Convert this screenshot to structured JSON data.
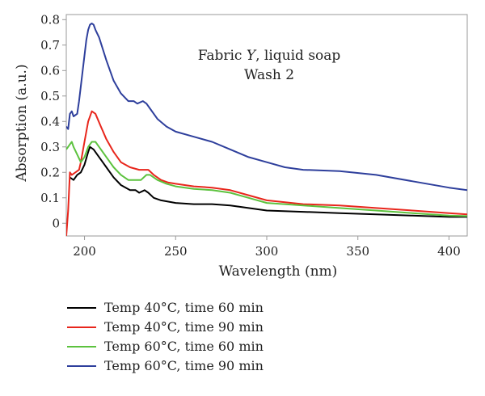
{
  "chart_data": {
    "type": "line",
    "title": "",
    "xlabel": "Wavelength (nm)",
    "ylabel": "Absorption (a.u.)",
    "xlim": [
      190,
      410
    ],
    "ylim": [
      -0.05,
      0.82
    ],
    "xticks": [
      200,
      250,
      300,
      350,
      400
    ],
    "yticks": [
      0,
      0.1,
      0.2,
      0.3,
      0.4,
      0.5,
      0.6,
      0.7,
      0.8
    ],
    "xtick_labels": [
      "200",
      "250",
      "300",
      "350",
      "400"
    ],
    "ytick_labels": [
      "0",
      "0.1",
      "0.2",
      "0.3",
      "0.4",
      "0.5",
      "0.6",
      "0.7",
      "0.8"
    ],
    "grid": false,
    "legend_position": "bottom",
    "annotation": {
      "line1_prefix": "Fabric ",
      "line1_italic": "Y",
      "line1_suffix": ", liquid soap",
      "line2": "Wash 2"
    },
    "series": [
      {
        "name": "Temp 40°C, time 60 min",
        "color": "#000000",
        "x": [
          192,
          194,
          196,
          198,
          200,
          202,
          203,
          205,
          208,
          212,
          216,
          220,
          225,
          228,
          230,
          233,
          235,
          238,
          242,
          246,
          250,
          260,
          270,
          280,
          290,
          300,
          320,
          340,
          360,
          380,
          400,
          410
        ],
        "y": [
          0.18,
          0.17,
          0.19,
          0.2,
          0.23,
          0.28,
          0.3,
          0.29,
          0.26,
          0.22,
          0.18,
          0.15,
          0.13,
          0.13,
          0.12,
          0.13,
          0.12,
          0.1,
          0.09,
          0.085,
          0.08,
          0.075,
          0.075,
          0.07,
          0.06,
          0.05,
          0.045,
          0.04,
          0.035,
          0.03,
          0.025,
          0.025
        ]
      },
      {
        "name": "Temp 40°C, time 90 min",
        "color": "#e8261c",
        "x": [
          190,
          191,
          192,
          193,
          195,
          197,
          198,
          200,
          202,
          204,
          206,
          209,
          212,
          216,
          220,
          225,
          230,
          235,
          238,
          242,
          246,
          250,
          260,
          270,
          280,
          290,
          300,
          320,
          340,
          360,
          380,
          400,
          410
        ],
        "y": [
          -0.05,
          0.05,
          0.2,
          0.19,
          0.2,
          0.21,
          0.24,
          0.32,
          0.4,
          0.44,
          0.43,
          0.38,
          0.33,
          0.28,
          0.24,
          0.22,
          0.21,
          0.21,
          0.19,
          0.17,
          0.16,
          0.155,
          0.145,
          0.14,
          0.13,
          0.11,
          0.09,
          0.075,
          0.07,
          0.06,
          0.05,
          0.04,
          0.035
        ]
      },
      {
        "name": "Temp 60°C, time 60 min",
        "color": "#5cc23e",
        "x": [
          190,
          192,
          193,
          194,
          196,
          198,
          200,
          202,
          204,
          206,
          208,
          212,
          216,
          220,
          224,
          228,
          231,
          234,
          236,
          240,
          245,
          250,
          260,
          270,
          280,
          290,
          300,
          320,
          340,
          360,
          380,
          400,
          410
        ],
        "y": [
          0.29,
          0.31,
          0.32,
          0.3,
          0.27,
          0.24,
          0.26,
          0.3,
          0.32,
          0.32,
          0.3,
          0.26,
          0.22,
          0.19,
          0.17,
          0.17,
          0.17,
          0.19,
          0.19,
          0.17,
          0.155,
          0.145,
          0.135,
          0.13,
          0.12,
          0.1,
          0.08,
          0.07,
          0.06,
          0.05,
          0.04,
          0.03,
          0.028
        ]
      },
      {
        "name": "Temp 60°C, time 90 min",
        "color": "#2e3f9c",
        "x": [
          190,
          191,
          192,
          193,
          194,
          196,
          197,
          199,
          201,
          202,
          203,
          204,
          205,
          206,
          208,
          212,
          216,
          220,
          224,
          227,
          229,
          232,
          234,
          236,
          240,
          245,
          250,
          260,
          270,
          280,
          290,
          300,
          310,
          320,
          340,
          360,
          380,
          400,
          410
        ],
        "y": [
          0.38,
          0.37,
          0.43,
          0.44,
          0.42,
          0.43,
          0.48,
          0.6,
          0.72,
          0.76,
          0.78,
          0.785,
          0.78,
          0.76,
          0.73,
          0.64,
          0.56,
          0.51,
          0.48,
          0.48,
          0.47,
          0.48,
          0.47,
          0.45,
          0.41,
          0.38,
          0.36,
          0.34,
          0.32,
          0.29,
          0.26,
          0.24,
          0.22,
          0.21,
          0.205,
          0.19,
          0.165,
          0.14,
          0.13
        ]
      }
    ]
  }
}
